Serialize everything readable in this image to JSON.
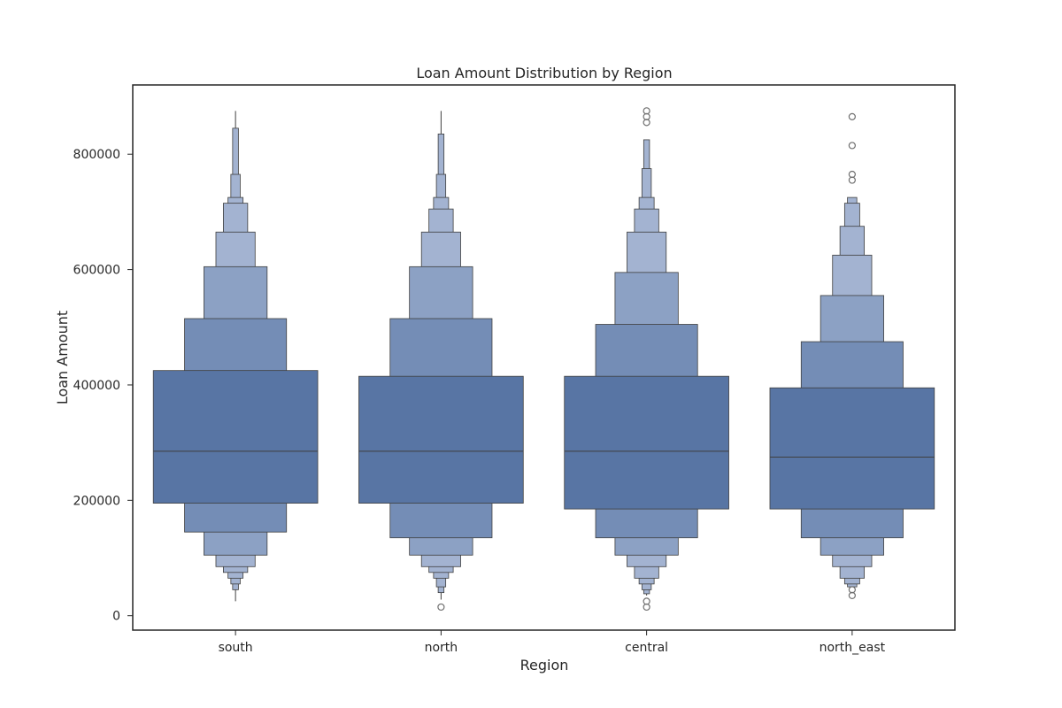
{
  "chart_data": {
    "type": "boxen",
    "title": "Loan Amount Distribution by Region",
    "xlabel": "Region",
    "ylabel": "Loan Amount",
    "ylim": [
      -25000,
      920000
    ],
    "yticks": [
      0,
      200000,
      400000,
      600000,
      800000
    ],
    "ytick_labels": [
      "0",
      "200000",
      "400000",
      "600000",
      "800000"
    ],
    "grid": false,
    "legend": "none",
    "colors": {
      "level1": "#5875a4",
      "level2": "#748db6",
      "level3": "#8ca1c4",
      "level4": "#a3b3d1",
      "edge": "#3f3f3f",
      "outlier_edge": "#707070"
    },
    "categories": [
      "south",
      "north",
      "central",
      "north_east"
    ],
    "series": [
      {
        "category": "south",
        "median": 285000,
        "boxes": [
          [
            195000,
            425000
          ],
          [
            145000,
            515000
          ],
          [
            105000,
            605000
          ],
          [
            85000,
            665000
          ],
          [
            75000,
            715000
          ],
          [
            65000,
            725000
          ],
          [
            55000,
            765000
          ],
          [
            45000,
            845000
          ]
        ],
        "whisker": [
          25000,
          875000
        ],
        "outliers": []
      },
      {
        "category": "north",
        "median": 285000,
        "boxes": [
          [
            195000,
            415000
          ],
          [
            135000,
            515000
          ],
          [
            105000,
            605000
          ],
          [
            85000,
            665000
          ],
          [
            75000,
            705000
          ],
          [
            65000,
            725000
          ],
          [
            50000,
            765000
          ],
          [
            40000,
            835000
          ]
        ],
        "whisker": [
          28000,
          875000
        ],
        "outliers": [
          15000
        ]
      },
      {
        "category": "central",
        "median": 285000,
        "boxes": [
          [
            185000,
            415000
          ],
          [
            135000,
            505000
          ],
          [
            105000,
            595000
          ],
          [
            85000,
            665000
          ],
          [
            65000,
            705000
          ],
          [
            55000,
            725000
          ],
          [
            45000,
            775000
          ],
          [
            38000,
            825000
          ]
        ],
        "whisker": [
          35000,
          825000
        ],
        "outliers": [
          15000,
          25000,
          855000,
          865000,
          875000
        ]
      },
      {
        "category": "north_east",
        "median": 275000,
        "boxes": [
          [
            185000,
            395000
          ],
          [
            135000,
            475000
          ],
          [
            105000,
            555000
          ],
          [
            85000,
            625000
          ],
          [
            65000,
            675000
          ],
          [
            55000,
            715000
          ],
          [
            50000,
            725000
          ]
        ],
        "whisker": [
          50000,
          725000
        ],
        "outliers": [
          35000,
          45000,
          755000,
          765000,
          815000,
          865000
        ]
      }
    ]
  }
}
